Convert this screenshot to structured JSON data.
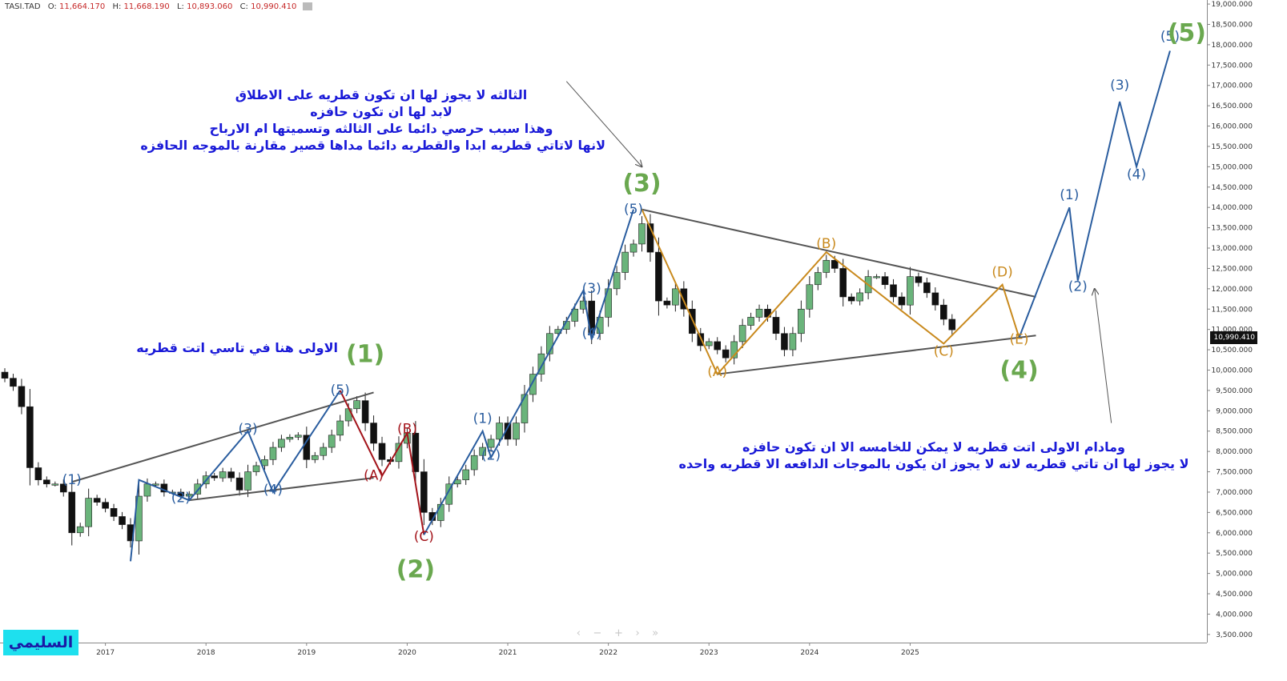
{
  "header": {
    "symbol": "TASI.TAD",
    "open_label": "O:",
    "open": "11,664.170",
    "high_label": "H:",
    "high": "11,668.190",
    "low_label": "L:",
    "low": "10,893.060",
    "close_label": "C:",
    "close": "10,990.410"
  },
  "logo_text": "السليمي",
  "nav_controls": [
    "‹",
    "−",
    "+",
    "›",
    "»"
  ],
  "price_tag": "10,990.410",
  "annotations": {
    "third_wave": [
      "الثالثه لا يجوز لها ان تكون قطريه على الاطلاق",
      "لابد لها ان تكون حافزه",
      "وهذا سبب  حرصي دائما على الثالثه وتسميتها ام الارباح",
      "لانها لاتاتي قطريه ابدا والقطريه دائما مداها قصير مقارنة بالموجه الحافزه"
    ],
    "first_wave": [
      "الاولى هنا في تاسي  اتت قطريه"
    ],
    "fifth_wave": [
      "ومادام الاولى اتت قطريه لا يمكن للخامسه الا ان تكون حافزه",
      "لا يجوز لها ان تاتي قطريه لانه لا يجوز ان يكون بالموجات الدافعه الا قطريه واحده"
    ]
  },
  "colors": {
    "up": "#6ab47b",
    "down": "#111111",
    "wave_blue": "#2a5d9f",
    "wave_orange": "#c98a1e",
    "wave_red": "#a3131a",
    "major_green": "#6aa84f",
    "trend_gray": "#555555",
    "text_blue": "#1a1ad8"
  },
  "chart_data": {
    "type": "candlestick",
    "interval": "monthly",
    "y_axis": {
      "range": [
        3300,
        19100
      ],
      "ticks": [
        "3,500.000",
        "4,000.000",
        "4,500.000",
        "5,000.000",
        "5,500.000",
        "6,000.000",
        "6,500.000",
        "7,000.000",
        "7,500.000",
        "8,000.000",
        "8,500.000",
        "9,000.000",
        "9,500.000",
        "10,000.000",
        "10,500.000",
        "11,000.000",
        "11,500.000",
        "12,000.000",
        "12,500.000",
        "13,000.000",
        "13,500.000",
        "14,000.000",
        "14,500.000",
        "15,000.000",
        "15,500.000",
        "16,000.000",
        "16,500.000",
        "17,000.000",
        "17,500.000",
        "18,000.000",
        "18,500.000",
        "19,000.000"
      ]
    },
    "x_axis": {
      "range": [
        "2016-01",
        "2027-06"
      ],
      "ticks": [
        "2017",
        "2018",
        "2019",
        "2020",
        "2021",
        "2022",
        "2023",
        "2024",
        "2025"
      ]
    },
    "series_close": [
      [
        "2016-01",
        9800
      ],
      [
        "2016-02",
        9600
      ],
      [
        "2016-03",
        9100
      ],
      [
        "2016-04",
        7600
      ],
      [
        "2016-05",
        7300
      ],
      [
        "2016-06",
        7200
      ],
      [
        "2016-07",
        7200
      ],
      [
        "2016-08",
        7000
      ],
      [
        "2016-09",
        6000
      ],
      [
        "2016-10",
        6150
      ],
      [
        "2016-11",
        6850
      ],
      [
        "2016-12",
        6750
      ],
      [
        "2017-01",
        6600
      ],
      [
        "2017-02",
        6400
      ],
      [
        "2017-03",
        6200
      ],
      [
        "2017-04",
        5800
      ],
      [
        "2017-05",
        6900
      ],
      [
        "2017-06",
        7200
      ],
      [
        "2017-07",
        7200
      ],
      [
        "2017-08",
        7000
      ],
      [
        "2017-09",
        7000
      ],
      [
        "2017-10",
        6900
      ],
      [
        "2017-11",
        6950
      ],
      [
        "2017-12",
        7200
      ],
      [
        "2018-01",
        7400
      ],
      [
        "2018-02",
        7350
      ],
      [
        "2018-03",
        7500
      ],
      [
        "2018-04",
        7350
      ],
      [
        "2018-05",
        7050
      ],
      [
        "2018-06",
        7500
      ],
      [
        "2018-07",
        7650
      ],
      [
        "2018-08",
        7800
      ],
      [
        "2018-09",
        8100
      ],
      [
        "2018-10",
        8300
      ],
      [
        "2018-11",
        8350
      ],
      [
        "2018-12",
        8400
      ],
      [
        "2019-01",
        7800
      ],
      [
        "2019-02",
        7900
      ],
      [
        "2019-03",
        8100
      ],
      [
        "2019-04",
        8400
      ],
      [
        "2019-05",
        8750
      ],
      [
        "2019-06",
        9050
      ],
      [
        "2019-07",
        9250
      ],
      [
        "2019-08",
        8700
      ],
      [
        "2019-09",
        8200
      ],
      [
        "2019-10",
        7800
      ],
      [
        "2019-11",
        7750
      ],
      [
        "2019-12",
        8200
      ],
      [
        "2020-01",
        8450
      ],
      [
        "2020-02",
        7500
      ],
      [
        "2020-03",
        6500
      ],
      [
        "2020-04",
        6300
      ],
      [
        "2020-05",
        6700
      ],
      [
        "2020-06",
        7200
      ],
      [
        "2020-07",
        7300
      ],
      [
        "2020-08",
        7550
      ],
      [
        "2020-09",
        7900
      ],
      [
        "2020-10",
        8100
      ],
      [
        "2020-11",
        8300
      ],
      [
        "2020-12",
        8700
      ],
      [
        "2021-01",
        8300
      ],
      [
        "2021-02",
        8700
      ],
      [
        "2021-03",
        9400
      ],
      [
        "2021-04",
        9900
      ],
      [
        "2021-05",
        10400
      ],
      [
        "2021-06",
        10900
      ],
      [
        "2021-07",
        11000
      ],
      [
        "2021-08",
        11200
      ],
      [
        "2021-09",
        11500
      ],
      [
        "2021-10",
        11700
      ],
      [
        "2021-11",
        10900
      ],
      [
        "2021-12",
        11300
      ],
      [
        "2022-01",
        12000
      ],
      [
        "2022-02",
        12400
      ],
      [
        "2022-03",
        12900
      ],
      [
        "2022-04",
        13100
      ],
      [
        "2022-05",
        13600
      ],
      [
        "2022-06",
        12900
      ],
      [
        "2022-07",
        11700
      ],
      [
        "2022-08",
        11600
      ],
      [
        "2022-09",
        12000
      ],
      [
        "2022-10",
        11500
      ],
      [
        "2022-11",
        10900
      ],
      [
        "2022-12",
        10600
      ],
      [
        "2023-01",
        10700
      ],
      [
        "2023-02",
        10500
      ],
      [
        "2023-03",
        10300
      ],
      [
        "2023-04",
        10700
      ],
      [
        "2023-05",
        11100
      ],
      [
        "2023-06",
        11300
      ],
      [
        "2023-07",
        11500
      ],
      [
        "2023-08",
        11300
      ],
      [
        "2023-09",
        10900
      ],
      [
        "2023-10",
        10500
      ],
      [
        "2023-11",
        10900
      ],
      [
        "2023-12",
        11500
      ],
      [
        "2024-01",
        12100
      ],
      [
        "2024-02",
        12400
      ],
      [
        "2024-03",
        12700
      ],
      [
        "2024-04",
        12500
      ],
      [
        "2024-05",
        11800
      ],
      [
        "2024-06",
        11700
      ],
      [
        "2024-07",
        11900
      ],
      [
        "2024-08",
        12300
      ],
      [
        "2024-09",
        12300
      ],
      [
        "2024-10",
        12100
      ],
      [
        "2024-11",
        11800
      ],
      [
        "2024-12",
        11600
      ],
      [
        "2025-01",
        12300
      ],
      [
        "2025-02",
        12150
      ],
      [
        "2025-03",
        11900
      ],
      [
        "2025-04",
        11600
      ],
      [
        "2025-05",
        11250
      ],
      [
        "2025-06",
        10990
      ]
    ],
    "wave_labels": [
      {
        "text": "(1)",
        "date": "2016-09",
        "price": 7200,
        "color": "wave_blue",
        "size": "small"
      },
      {
        "text": "(2)",
        "date": "2017-10",
        "price": 6750,
        "color": "wave_blue",
        "size": "small"
      },
      {
        "text": "(3)",
        "date": "2018-06",
        "price": 8450,
        "color": "wave_blue",
        "size": "small"
      },
      {
        "text": "(4)",
        "date": "2018-09",
        "price": 6950,
        "color": "wave_blue",
        "size": "small"
      },
      {
        "text": "(5)",
        "date": "2019-05",
        "price": 9400,
        "color": "wave_blue",
        "size": "small"
      },
      {
        "text": "(B)",
        "date": "2020-01",
        "price": 8450,
        "color": "wave_red",
        "size": "small"
      },
      {
        "text": "(A)",
        "date": "2019-09",
        "price": 7300,
        "color": "wave_red",
        "size": "small"
      },
      {
        "text": "(C)",
        "date": "2020-03",
        "price": 5800,
        "color": "wave_red",
        "size": "small"
      },
      {
        "text": "(1)",
        "date": "2020-10",
        "price": 8700,
        "color": "wave_blue",
        "size": "small"
      },
      {
        "text": "(2)",
        "date": "2020-11",
        "price": 7800,
        "color": "wave_blue",
        "size": "small"
      },
      {
        "text": "(3)",
        "date": "2021-11",
        "price": 11900,
        "color": "wave_blue",
        "size": "small"
      },
      {
        "text": "(4)",
        "date": "2021-11",
        "price": 10800,
        "color": "wave_blue",
        "size": "small"
      },
      {
        "text": "(5)",
        "date": "2022-04",
        "price": 13850,
        "color": "wave_blue",
        "size": "small"
      },
      {
        "text": "(A)",
        "date": "2023-02",
        "price": 9850,
        "color": "wave_orange",
        "size": "small"
      },
      {
        "text": "(B)",
        "date": "2024-03",
        "price": 13000,
        "color": "wave_orange",
        "size": "small"
      },
      {
        "text": "(C)",
        "date": "2025-05",
        "price": 10350,
        "color": "wave_orange",
        "size": "small"
      },
      {
        "text": "(D)",
        "date": "2025-12",
        "price": 12300,
        "color": "wave_orange",
        "size": "small"
      },
      {
        "text": "(E)",
        "date": "2026-02",
        "price": 10650,
        "color": "wave_orange",
        "size": "small"
      },
      {
        "text": "(1)",
        "date": "2026-08",
        "price": 14200,
        "color": "wave_blue",
        "size": "small"
      },
      {
        "text": "(2)",
        "date": "2026-09",
        "price": 11950,
        "color": "wave_blue",
        "size": "small"
      },
      {
        "text": "(3)",
        "date": "2027-02",
        "price": 16900,
        "color": "wave_blue",
        "size": "small"
      },
      {
        "text": "(4)",
        "date": "2027-04",
        "price": 14700,
        "color": "wave_blue",
        "size": "small"
      },
      {
        "text": "(5)",
        "date": "2027-08",
        "price": 18100,
        "color": "wave_blue",
        "size": "small"
      },
      {
        "text": "(1)",
        "date": "2019-08",
        "price": 10200,
        "color": "major_green",
        "size": "big"
      },
      {
        "text": "(2)",
        "date": "2020-02",
        "price": 4900,
        "color": "major_green",
        "size": "big"
      },
      {
        "text": "(3)",
        "date": "2022-05",
        "price": 14400,
        "color": "major_green",
        "size": "big"
      },
      {
        "text": "(4)",
        "date": "2026-02",
        "price": 9800,
        "color": "major_green",
        "size": "big"
      },
      {
        "text": "(5)",
        "date": "2027-10",
        "price": 18100,
        "color": "major_green",
        "size": "big"
      }
    ],
    "wave_paths": [
      {
        "color": "wave_blue",
        "points": [
          [
            "2017-04",
            5300
          ],
          [
            "2017-05",
            7300
          ],
          [
            "2017-11",
            6800
          ],
          [
            "2018-06",
            8500
          ],
          [
            "2018-09",
            7000
          ],
          [
            "2019-05",
            9500
          ]
        ]
      },
      {
        "color": "wave_red",
        "points": [
          [
            "2019-05",
            9500
          ],
          [
            "2019-10",
            7400
          ],
          [
            "2020-01",
            8450
          ],
          [
            "2020-03",
            5950
          ]
        ]
      },
      {
        "color": "wave_blue",
        "points": [
          [
            "2020-03",
            5950
          ],
          [
            "2020-10",
            8500
          ],
          [
            "2020-11",
            7850
          ],
          [
            "2021-10",
            11950
          ],
          [
            "2021-11",
            10750
          ],
          [
            "2022-04",
            13950
          ]
        ]
      },
      {
        "color": "wave_orange",
        "points": [
          [
            "2022-05",
            13950
          ],
          [
            "2023-02",
            9900
          ],
          [
            "2024-03",
            12900
          ],
          [
            "2025-05",
            10650
          ],
          [
            "2025-12",
            12100
          ],
          [
            "2026-02",
            10800
          ]
        ]
      },
      {
        "color": "wave_blue",
        "points": [
          [
            "2026-02",
            10800
          ],
          [
            "2026-08",
            14000
          ],
          [
            "2026-09",
            12200
          ],
          [
            "2027-02",
            16600
          ],
          [
            "2027-04",
            15000
          ],
          [
            "2027-08",
            17850
          ]
        ]
      }
    ],
    "trend_lines": [
      {
        "from": [
          "2016-09",
          7250
        ],
        "to": [
          "2019-09",
          9450
        ]
      },
      {
        "from": [
          "2017-11",
          6800
        ],
        "to": [
          "2019-09",
          7350
        ]
      },
      {
        "from": [
          "2022-05",
          13950
        ],
        "to": [
          "2026-04",
          11800
        ]
      },
      {
        "from": [
          "2023-02",
          9900
        ],
        "to": [
          "2026-04",
          10850
        ]
      }
    ],
    "arrows": [
      {
        "from": [
          "2021-08",
          17100
        ],
        "to": [
          "2022-05",
          15000
        ]
      },
      {
        "from": [
          "2027-01",
          8700
        ],
        "to": [
          "2026-11",
          12000
        ]
      }
    ]
  }
}
